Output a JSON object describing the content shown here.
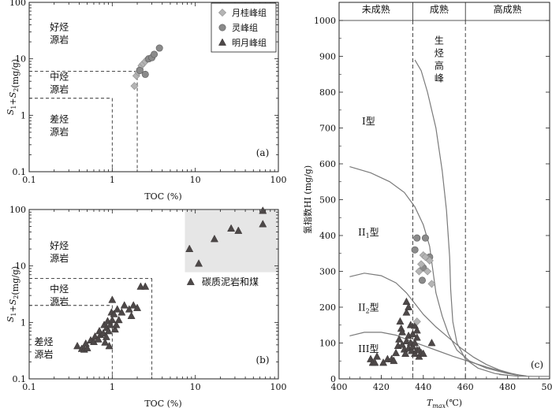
{
  "chart_data": [
    {
      "panel": "(a)",
      "type": "scatter",
      "xscale": "log",
      "yscale": "log",
      "xlim": [
        0.1,
        100
      ],
      "ylim": [
        0.1,
        100
      ],
      "xlabel": "TOC (%)",
      "ylabel_main": "S",
      "ylabel_sub1": "1",
      "ylabel_plus": "+S",
      "ylabel_sub2": "2",
      "ylabel_unit": "(mg/g)",
      "xticks": [
        0.1,
        1,
        10,
        100
      ],
      "xtick_labels": [
        "0.1",
        "1",
        "10",
        "100"
      ],
      "yticks": [
        0.1,
        1,
        10,
        100
      ],
      "ytick_labels": [
        "0.1",
        "1",
        "10",
        "100"
      ],
      "zone_labels": [
        {
          "line1": "好烃",
          "line2": "源岩",
          "x": 0.23,
          "y": 32
        },
        {
          "line1": "中烃",
          "line2": "源岩",
          "x": 0.23,
          "y": 4.2
        },
        {
          "line1": "差烃",
          "line2": "源岩",
          "x": 0.23,
          "y": 0.75
        }
      ],
      "boundaries": [
        {
          "points": [
            [
              0.1,
              6
            ],
            [
              2,
              6
            ]
          ]
        },
        {
          "points": [
            [
              0.1,
              2
            ],
            [
              1,
              2
            ]
          ]
        },
        {
          "points": [
            [
              1,
              2
            ],
            [
              1,
              0.1
            ]
          ]
        },
        {
          "points": [
            [
              2,
              6
            ],
            [
              2,
              0.1
            ]
          ]
        }
      ],
      "legend": {
        "position": "top-right",
        "entries": [
          {
            "name": "月桂峰组",
            "marker": "diamond",
            "color": "#b4b4b4"
          },
          {
            "name": "灵峰组",
            "marker": "circle",
            "color": "#8a8a8a"
          },
          {
            "name": "明月峰组",
            "marker": "triangle",
            "color": "#4d4848"
          }
        ]
      },
      "series": [
        {
          "name": "月桂峰组",
          "marker": "diamond",
          "color": "#b4b4b4",
          "points": [
            [
              1.85,
              3.3
            ],
            [
              1.95,
              5.0
            ],
            [
              2.05,
              5.8
            ],
            [
              2.15,
              6.6
            ],
            [
              2.25,
              7.6
            ],
            [
              2.35,
              8.2
            ],
            [
              2.5,
              9.0
            ],
            [
              2.65,
              9.8
            ]
          ]
        },
        {
          "name": "灵峰组",
          "marker": "circle",
          "color": "#8a8a8a",
          "points": [
            [
              2.15,
              6.2
            ],
            [
              2.5,
              5.3
            ],
            [
              2.75,
              10.0
            ],
            [
              3.0,
              10.5
            ],
            [
              3.2,
              12.0
            ],
            [
              3.7,
              15.5
            ]
          ]
        }
      ]
    },
    {
      "panel": "(b)",
      "type": "scatter",
      "xscale": "log",
      "yscale": "log",
      "xlim": [
        0.1,
        100
      ],
      "ylim": [
        0.1,
        100
      ],
      "xlabel": "TOC (%)",
      "ylabel_main": "S",
      "ylabel_sub1": "1",
      "ylabel_plus": "+S",
      "ylabel_sub2": "2",
      "ylabel_unit": "(mg/g)",
      "xticks": [
        0.1,
        1,
        10,
        100
      ],
      "xtick_labels": [
        "0.1",
        "1",
        "10",
        "100"
      ],
      "yticks": [
        0.1,
        1,
        10,
        100
      ],
      "ytick_labels": [
        "0.1",
        "1",
        "10",
        "100"
      ],
      "zone_labels": [
        {
          "line1": "好烃",
          "line2": "源岩",
          "x": 0.23,
          "y": 20
        },
        {
          "line1": "中烃",
          "line2": "源岩",
          "x": 0.23,
          "y": 3.4
        },
        {
          "line1": "差烃",
          "line2": "源岩",
          "x": 0.15,
          "y": 0.4
        }
      ],
      "boundaries": [
        {
          "points": [
            [
              0.1,
              6
            ],
            [
              3,
              6
            ]
          ]
        },
        {
          "points": [
            [
              0.1,
              2
            ],
            [
              1,
              2
            ]
          ]
        },
        {
          "points": [
            [
              1,
              2
            ],
            [
              1,
              0.1
            ]
          ]
        },
        {
          "points": [
            [
              3,
              6
            ],
            [
              3,
              0.1
            ]
          ]
        }
      ],
      "shaded_region": {
        "x": [
          7.5,
          100
        ],
        "y": [
          8,
          100
        ],
        "color": "#e6e6e6",
        "label": "碳质泥岩和煤"
      },
      "series": [
        {
          "name": "明月峰组",
          "marker": "triangle",
          "color": "#4d4848",
          "points": [
            [
              0.38,
              0.38
            ],
            [
              0.43,
              0.34
            ],
            [
              0.46,
              0.33
            ],
            [
              0.5,
              0.35
            ],
            [
              0.48,
              0.42
            ],
            [
              0.55,
              0.48
            ],
            [
              0.6,
              0.45
            ],
            [
              0.62,
              0.56
            ],
            [
              0.68,
              0.5
            ],
            [
              0.72,
              0.6
            ],
            [
              0.7,
              0.7
            ],
            [
              0.78,
              0.64
            ],
            [
              0.8,
              0.9
            ],
            [
              0.82,
              0.44
            ],
            [
              0.85,
              0.55
            ],
            [
              0.86,
              0.8
            ],
            [
              0.88,
              1.05
            ],
            [
              0.9,
              0.7
            ],
            [
              0.92,
              0.38
            ],
            [
              0.95,
              0.9
            ],
            [
              0.98,
              1.5
            ],
            [
              1.0,
              1.1
            ],
            [
              1.0,
              2.5
            ],
            [
              1.05,
              1.4
            ],
            [
              1.08,
              0.75
            ],
            [
              1.12,
              0.9
            ],
            [
              1.15,
              1.7
            ],
            [
              1.2,
              1.1
            ],
            [
              1.3,
              1.5
            ],
            [
              1.4,
              2.0
            ],
            [
              1.6,
              1.7
            ],
            [
              1.7,
              1.3
            ],
            [
              1.8,
              2.0
            ],
            [
              2.0,
              1.8
            ],
            [
              2.2,
              4.3
            ],
            [
              2.5,
              4.3
            ],
            [
              8.5,
              20
            ],
            [
              11,
              11
            ],
            [
              17,
              30
            ],
            [
              27,
              46
            ],
            [
              33,
              42
            ],
            [
              65,
              95
            ],
            [
              65,
              55
            ]
          ]
        }
      ]
    },
    {
      "panel": "(c)",
      "type": "scatter",
      "xlim": [
        400,
        500
      ],
      "ylim": [
        0,
        1000
      ],
      "xlabel_main": "T",
      "xlabel_sub": "max",
      "xlabel_unit": "(℃)",
      "ylabel": "氢指数HI (mg/g)",
      "xticks": [
        400,
        420,
        440,
        460,
        480,
        500
      ],
      "yticks": [
        0,
        100,
        200,
        300,
        400,
        500,
        600,
        700,
        800,
        900,
        1000
      ],
      "maturity_zones": [
        {
          "label": "未成熟",
          "x_from": 400,
          "x_to": 435
        },
        {
          "label": "成熟",
          "x_from": 435,
          "x_to": 460
        },
        {
          "label": "高成熟",
          "x_from": 460,
          "x_to": 500
        }
      ],
      "dividers_x": [
        435,
        460
      ],
      "peak_label": [
        "生",
        "烃",
        "高",
        "峰"
      ],
      "type_labels": [
        {
          "main": "I型",
          "sub": "",
          "suffix": "",
          "x": 414,
          "y": 710
        },
        {
          "main": "II",
          "sub": "1",
          "suffix": "型",
          "x": 414,
          "y": 400
        },
        {
          "main": "II",
          "sub": "2",
          "suffix": "型",
          "x": 414,
          "y": 190
        },
        {
          "main": "III型",
          "sub": "",
          "suffix": "",
          "x": 414,
          "y": 75
        }
      ],
      "curves": [
        {
          "name": "I",
          "points": [
            [
              436,
              890
            ],
            [
              439,
              860
            ],
            [
              442,
              800
            ],
            [
              446,
              700
            ],
            [
              449,
              580
            ],
            [
              451,
              470
            ],
            [
              452.5,
              340
            ],
            [
              453,
              250
            ],
            [
              454,
              160
            ],
            [
              456,
              100
            ],
            [
              460,
              55
            ],
            [
              466,
              30
            ],
            [
              474,
              15
            ],
            [
              480,
              10
            ]
          ]
        },
        {
          "name": "II1",
          "points": [
            [
              405,
              592
            ],
            [
              415,
              575
            ],
            [
              424,
              550
            ],
            [
              431,
              520
            ],
            [
              436,
              480
            ],
            [
              440,
              430
            ],
            [
              443,
              370
            ],
            [
              444.5,
              305
            ],
            [
              446,
              240
            ],
            [
              449,
              175
            ],
            [
              452,
              125
            ],
            [
              456,
              80
            ],
            [
              462,
              50
            ],
            [
              470,
              30
            ],
            [
              480,
              15
            ],
            [
              485,
              10
            ]
          ]
        },
        {
          "name": "II2",
          "points": [
            [
              405,
              285
            ],
            [
              412,
              295
            ],
            [
              420,
              288
            ],
            [
              427,
              268
            ],
            [
              432,
              240
            ],
            [
              436,
              210
            ],
            [
              440,
              180
            ],
            [
              446,
              145
            ],
            [
              452,
              115
            ],
            [
              458,
              85
            ],
            [
              464,
              60
            ],
            [
              470,
              40
            ],
            [
              476,
              25
            ],
            [
              482,
              15
            ],
            [
              486,
              10
            ]
          ]
        },
        {
          "name": "III",
          "points": [
            [
              405,
              120
            ],
            [
              412,
              130
            ],
            [
              420,
              130
            ],
            [
              427,
              122
            ],
            [
              433,
              108
            ],
            [
              440,
              93
            ],
            [
              447,
              78
            ],
            [
              454,
              63
            ],
            [
              462,
              48
            ],
            [
              470,
              33
            ],
            [
              478,
              20
            ],
            [
              484,
              12
            ],
            [
              489,
              8
            ]
          ]
        },
        {
          "name": "tail",
          "points": [
            [
              476,
              12
            ],
            [
              484,
              8
            ],
            [
              492,
              7
            ],
            [
              500,
              7
            ]
          ]
        }
      ],
      "series": [
        {
          "name": "月桂峰组",
          "marker": "diamond",
          "color": "#b4b4b4",
          "points": [
            [
              437,
              160
            ],
            [
              438,
              300
            ],
            [
              439,
              320
            ],
            [
              440,
              345
            ],
            [
              441,
              340
            ],
            [
              442,
              300
            ],
            [
              443,
              330
            ],
            [
              444,
              265
            ]
          ]
        },
        {
          "name": "灵峰组",
          "marker": "circle",
          "color": "#8a8a8a",
          "points": [
            [
              436,
              360
            ],
            [
              437,
              393
            ],
            [
              441,
              393
            ],
            [
              439.5,
              275
            ],
            [
              440,
              310
            ],
            [
              443,
              340
            ]
          ]
        },
        {
          "name": "明月峰组",
          "marker": "triangle",
          "color": "#4d4848",
          "points": [
            [
              415,
              55
            ],
            [
              416,
              45
            ],
            [
              417,
              45
            ],
            [
              418,
              62
            ],
            [
              421,
              45
            ],
            [
              423,
              55
            ],
            [
              425,
              55
            ],
            [
              426,
              50
            ],
            [
              427,
              72
            ],
            [
              428,
              92
            ],
            [
              428.5,
              110
            ],
            [
              429,
              160
            ],
            [
              429.5,
              140
            ],
            [
              430,
              95
            ],
            [
              430,
              130
            ],
            [
              431,
              82
            ],
            [
              431.5,
              70
            ],
            [
              432,
              105
            ],
            [
              432,
              185
            ],
            [
              432,
              215
            ],
            [
              433,
              85
            ],
            [
              433,
              120
            ],
            [
              433,
              200
            ],
            [
              434,
              100
            ],
            [
              434,
              150
            ],
            [
              434.5,
              78
            ],
            [
              435,
              125
            ],
            [
              435,
              90
            ],
            [
              436,
              70
            ],
            [
              436,
              100
            ],
            [
              436,
              148
            ],
            [
              437,
              80
            ],
            [
              437,
              115
            ],
            [
              437,
              135
            ],
            [
              438,
              80
            ],
            [
              438,
              62
            ],
            [
              439,
              72
            ],
            [
              440,
              70
            ],
            [
              444,
              100
            ]
          ]
        }
      ]
    }
  ]
}
